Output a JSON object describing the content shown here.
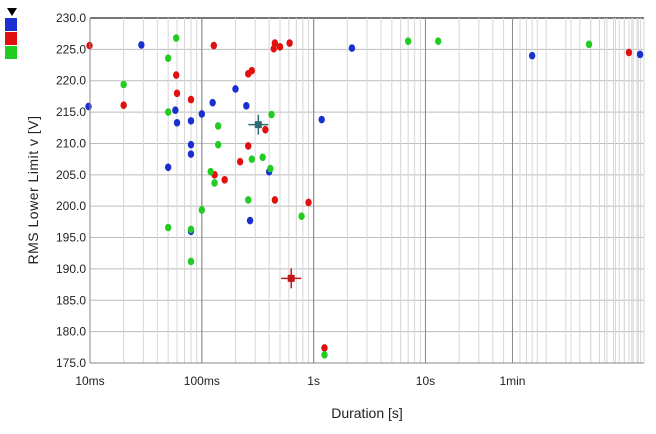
{
  "chart_data": {
    "type": "scatter",
    "xlabel": "Duration [s]",
    "ylabel": "RMS Lower Limit v [V]",
    "x_scale": "log",
    "x_unit": "s",
    "xlim": [
      0.01,
      900
    ],
    "ylim": [
      175,
      230
    ],
    "y_ticks": [
      "175.0",
      "180.0",
      "185.0",
      "190.0",
      "195.0",
      "200.0",
      "205.0",
      "210.0",
      "215.0",
      "220.0",
      "225.0",
      "230.0"
    ],
    "x_ticks": [
      {
        "value": 0.01,
        "label": "10ms"
      },
      {
        "value": 0.1,
        "label": "100ms"
      },
      {
        "value": 1,
        "label": "1s"
      },
      {
        "value": 10,
        "label": "10s"
      },
      {
        "value": 60,
        "label": "1min"
      }
    ],
    "grid": true,
    "legend": {
      "placement": "top-left",
      "colors": [
        "#1a2fd0",
        "#e01010",
        "#22cc22"
      ]
    },
    "series": [
      {
        "color": "#1a2fd0",
        "points": [
          [
            0.0288,
            225.7
          ],
          [
            0.0097,
            215.9
          ],
          [
            0.058,
            215.3
          ],
          [
            0.06,
            213.3
          ],
          [
            0.08,
            213.6
          ],
          [
            0.1,
            214.7
          ],
          [
            0.125,
            216.5
          ],
          [
            0.08,
            209.8
          ],
          [
            0.08,
            208.3
          ],
          [
            0.05,
            206.2
          ],
          [
            0.2,
            218.7
          ],
          [
            0.25,
            216.0
          ],
          [
            0.4,
            205.5
          ],
          [
            0.27,
            197.7
          ],
          [
            0.08,
            196.0
          ],
          [
            1.18,
            213.8
          ],
          [
            2.2,
            225.2
          ],
          [
            90,
            224.0
          ],
          [
            830,
            224.2
          ]
        ]
      },
      {
        "color": "#e01010",
        "points": [
          [
            0.0099,
            225.6
          ],
          [
            0.02,
            216.1
          ],
          [
            0.059,
            220.9
          ],
          [
            0.06,
            218.0
          ],
          [
            0.08,
            217.0
          ],
          [
            0.128,
            225.6
          ],
          [
            0.26,
            221.1
          ],
          [
            0.28,
            221.6
          ],
          [
            0.44,
            225.1
          ],
          [
            0.45,
            226.0
          ],
          [
            0.5,
            225.4
          ],
          [
            0.61,
            226.0
          ],
          [
            0.22,
            207.1
          ],
          [
            0.13,
            205.0
          ],
          [
            0.16,
            204.2
          ],
          [
            0.26,
            209.6
          ],
          [
            0.37,
            212.2
          ],
          [
            0.45,
            201.0
          ],
          [
            0.9,
            200.6
          ],
          [
            1.25,
            177.4
          ],
          [
            0.63,
            188.5
          ],
          [
            660,
            224.5
          ]
        ]
      },
      {
        "color": "#22cc22",
        "points": [
          [
            0.02,
            219.4
          ],
          [
            0.059,
            226.8
          ],
          [
            0.05,
            223.6
          ],
          [
            0.05,
            215.0
          ],
          [
            0.14,
            212.8
          ],
          [
            0.14,
            209.8
          ],
          [
            0.12,
            205.5
          ],
          [
            0.13,
            203.7
          ],
          [
            0.28,
            207.5
          ],
          [
            0.35,
            207.8
          ],
          [
            0.42,
            214.6
          ],
          [
            0.41,
            206.0
          ],
          [
            0.26,
            201.0
          ],
          [
            0.1,
            199.4
          ],
          [
            0.05,
            196.6
          ],
          [
            0.08,
            196.3
          ],
          [
            0.08,
            191.2
          ],
          [
            0.78,
            198.4
          ],
          [
            1.25,
            176.3
          ],
          [
            7,
            226.3
          ],
          [
            13,
            226.3
          ],
          [
            290,
            225.8
          ]
        ]
      }
    ],
    "markers": [
      {
        "color": "#2c6e74",
        "point": [
          0.32,
          213.0
        ]
      },
      {
        "color": "#c01818",
        "point": [
          0.63,
          188.5
        ]
      }
    ]
  }
}
